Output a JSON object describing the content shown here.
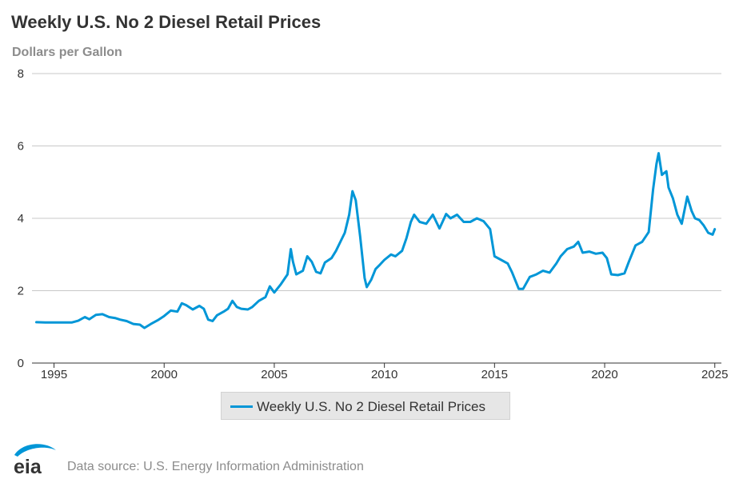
{
  "header": {
    "title": "Weekly U.S. No 2 Diesel Retail Prices",
    "subtitle": "Dollars per Gallon"
  },
  "legend": {
    "label": "Weekly U.S. No 2 Diesel Retail Prices"
  },
  "footer": {
    "logo_text": "eia",
    "source": "Data source: U.S. Energy Information Administration"
  },
  "colors": {
    "series": "#0096d7",
    "grid": "#c8c8c8",
    "text": "#333333",
    "muted": "#8c8c8c"
  },
  "chart_data": {
    "type": "line",
    "title": "Weekly U.S. No 2 Diesel Retail Prices",
    "ylabel": "Dollars per Gallon",
    "xlabel": "",
    "xlim": [
      1994.0,
      2025.3
    ],
    "ylim": [
      0,
      8
    ],
    "yticks": [
      0,
      2,
      4,
      6,
      8
    ],
    "xticks": [
      1995,
      2000,
      2005,
      2010,
      2015,
      2020,
      2025
    ],
    "grid": true,
    "legend_position": "bottom-center",
    "series": [
      {
        "name": "Weekly U.S. No 2 Diesel Retail Prices",
        "color": "#0096d7",
        "points": [
          [
            1994.2,
            1.13
          ],
          [
            1994.6,
            1.12
          ],
          [
            1995.0,
            1.12
          ],
          [
            1995.4,
            1.12
          ],
          [
            1995.8,
            1.12
          ],
          [
            1996.1,
            1.17
          ],
          [
            1996.4,
            1.27
          ],
          [
            1996.6,
            1.21
          ],
          [
            1996.9,
            1.33
          ],
          [
            1997.2,
            1.35
          ],
          [
            1997.5,
            1.27
          ],
          [
            1997.8,
            1.24
          ],
          [
            1998.0,
            1.2
          ],
          [
            1998.3,
            1.16
          ],
          [
            1998.6,
            1.08
          ],
          [
            1998.9,
            1.06
          ],
          [
            1999.1,
            0.97
          ],
          [
            1999.4,
            1.08
          ],
          [
            1999.7,
            1.18
          ],
          [
            2000.0,
            1.3
          ],
          [
            2000.3,
            1.45
          ],
          [
            2000.6,
            1.42
          ],
          [
            2000.8,
            1.65
          ],
          [
            2001.0,
            1.6
          ],
          [
            2001.3,
            1.48
          ],
          [
            2001.6,
            1.58
          ],
          [
            2001.8,
            1.5
          ],
          [
            2002.0,
            1.2
          ],
          [
            2002.2,
            1.16
          ],
          [
            2002.4,
            1.32
          ],
          [
            2002.7,
            1.42
          ],
          [
            2002.9,
            1.5
          ],
          [
            2003.1,
            1.72
          ],
          [
            2003.3,
            1.55
          ],
          [
            2003.5,
            1.5
          ],
          [
            2003.8,
            1.48
          ],
          [
            2004.0,
            1.55
          ],
          [
            2004.3,
            1.72
          ],
          [
            2004.6,
            1.82
          ],
          [
            2004.8,
            2.12
          ],
          [
            2005.0,
            1.95
          ],
          [
            2005.3,
            2.18
          ],
          [
            2005.6,
            2.45
          ],
          [
            2005.75,
            3.15
          ],
          [
            2005.85,
            2.8
          ],
          [
            2006.0,
            2.45
          ],
          [
            2006.3,
            2.55
          ],
          [
            2006.5,
            2.95
          ],
          [
            2006.7,
            2.8
          ],
          [
            2006.9,
            2.52
          ],
          [
            2007.1,
            2.48
          ],
          [
            2007.3,
            2.78
          ],
          [
            2007.6,
            2.9
          ],
          [
            2007.8,
            3.1
          ],
          [
            2008.0,
            3.35
          ],
          [
            2008.2,
            3.6
          ],
          [
            2008.4,
            4.1
          ],
          [
            2008.55,
            4.75
          ],
          [
            2008.7,
            4.5
          ],
          [
            2008.9,
            3.5
          ],
          [
            2009.1,
            2.35
          ],
          [
            2009.2,
            2.1
          ],
          [
            2009.4,
            2.3
          ],
          [
            2009.6,
            2.6
          ],
          [
            2009.8,
            2.72
          ],
          [
            2010.0,
            2.85
          ],
          [
            2010.3,
            3.0
          ],
          [
            2010.5,
            2.95
          ],
          [
            2010.8,
            3.1
          ],
          [
            2011.0,
            3.45
          ],
          [
            2011.2,
            3.9
          ],
          [
            2011.35,
            4.1
          ],
          [
            2011.6,
            3.9
          ],
          [
            2011.9,
            3.85
          ],
          [
            2012.2,
            4.1
          ],
          [
            2012.5,
            3.72
          ],
          [
            2012.8,
            4.12
          ],
          [
            2013.0,
            4.0
          ],
          [
            2013.3,
            4.1
          ],
          [
            2013.6,
            3.9
          ],
          [
            2013.9,
            3.9
          ],
          [
            2014.2,
            4.0
          ],
          [
            2014.5,
            3.92
          ],
          [
            2014.8,
            3.7
          ],
          [
            2015.0,
            2.95
          ],
          [
            2015.3,
            2.85
          ],
          [
            2015.6,
            2.75
          ],
          [
            2015.8,
            2.5
          ],
          [
            2016.1,
            2.05
          ],
          [
            2016.3,
            2.05
          ],
          [
            2016.6,
            2.38
          ],
          [
            2016.9,
            2.45
          ],
          [
            2017.2,
            2.55
          ],
          [
            2017.5,
            2.5
          ],
          [
            2017.8,
            2.75
          ],
          [
            2018.0,
            2.95
          ],
          [
            2018.3,
            3.15
          ],
          [
            2018.6,
            3.22
          ],
          [
            2018.8,
            3.35
          ],
          [
            2019.0,
            3.05
          ],
          [
            2019.3,
            3.08
          ],
          [
            2019.6,
            3.02
          ],
          [
            2019.9,
            3.05
          ],
          [
            2020.1,
            2.9
          ],
          [
            2020.3,
            2.45
          ],
          [
            2020.6,
            2.43
          ],
          [
            2020.9,
            2.48
          ],
          [
            2021.1,
            2.8
          ],
          [
            2021.4,
            3.25
          ],
          [
            2021.7,
            3.35
          ],
          [
            2022.0,
            3.62
          ],
          [
            2022.2,
            4.8
          ],
          [
            2022.35,
            5.5
          ],
          [
            2022.45,
            5.8
          ],
          [
            2022.6,
            5.2
          ],
          [
            2022.8,
            5.3
          ],
          [
            2022.9,
            4.85
          ],
          [
            2023.1,
            4.55
          ],
          [
            2023.3,
            4.1
          ],
          [
            2023.5,
            3.85
          ],
          [
            2023.75,
            4.6
          ],
          [
            2023.95,
            4.2
          ],
          [
            2024.1,
            4.0
          ],
          [
            2024.3,
            3.95
          ],
          [
            2024.5,
            3.8
          ],
          [
            2024.7,
            3.6
          ],
          [
            2024.9,
            3.55
          ],
          [
            2025.0,
            3.7
          ]
        ]
      }
    ]
  }
}
